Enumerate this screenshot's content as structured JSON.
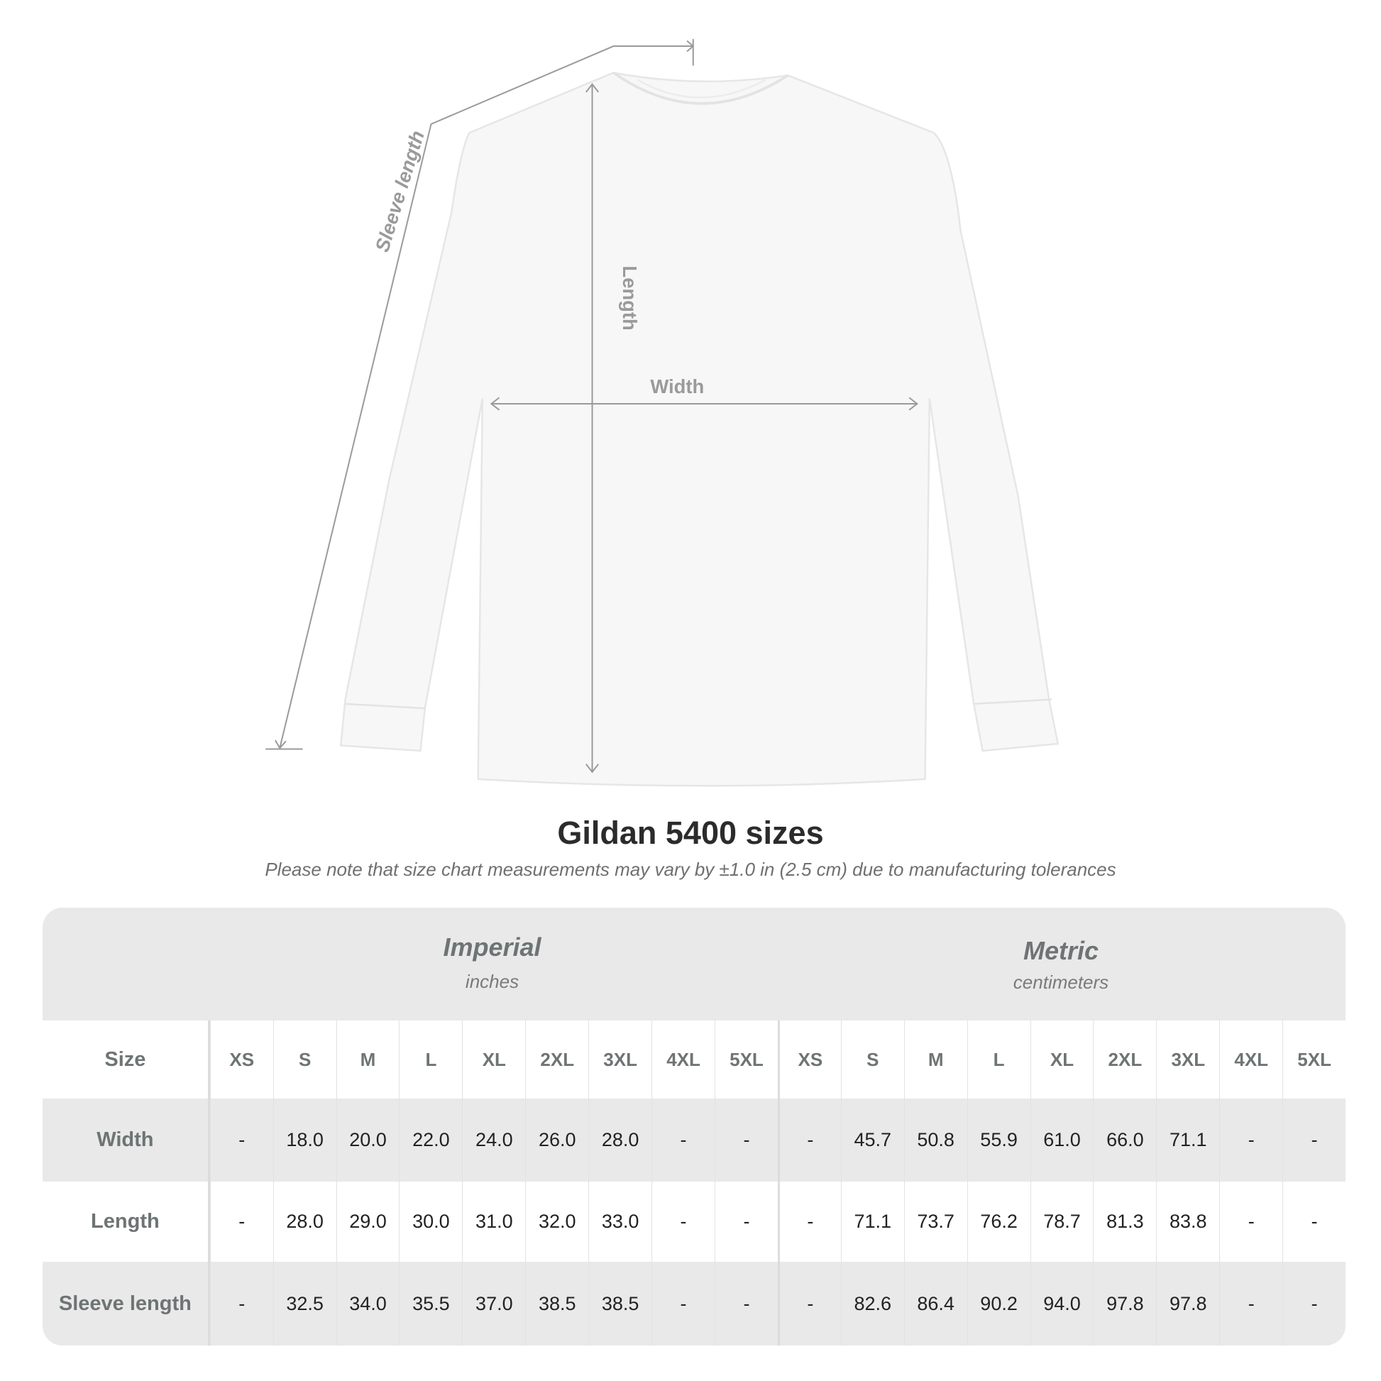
{
  "diagram": {
    "labels": {
      "sleeve": "Sleeve length",
      "length": "Length",
      "width": "Width"
    },
    "garment_color": "#f7f7f7",
    "line_color": "#9a9a9a"
  },
  "title": "Gildan 5400 sizes",
  "subtitle": "Please note that size chart measurements may vary by ±1.0 in (2.5 cm) due to manufacturing tolerances",
  "table": {
    "imperial": {
      "name": "Imperial",
      "unit": "inches"
    },
    "metric": {
      "name": "Metric",
      "unit": "centimeters"
    },
    "size_label": "Size",
    "sizes": [
      "XS",
      "S",
      "M",
      "L",
      "XL",
      "2XL",
      "3XL",
      "4XL",
      "5XL"
    ],
    "rows": [
      {
        "label": "Width",
        "imperial": [
          "-",
          "18.0",
          "20.0",
          "22.0",
          "24.0",
          "26.0",
          "28.0",
          "-",
          "-"
        ],
        "metric": [
          "-",
          "45.7",
          "50.8",
          "55.9",
          "61.0",
          "66.0",
          "71.1",
          "-",
          "-"
        ]
      },
      {
        "label": "Length",
        "imperial": [
          "-",
          "28.0",
          "29.0",
          "30.0",
          "31.0",
          "32.0",
          "33.0",
          "-",
          "-"
        ],
        "metric": [
          "-",
          "71.1",
          "73.7",
          "76.2",
          "78.7",
          "81.3",
          "83.8",
          "-",
          "-"
        ]
      },
      {
        "label": "Sleeve length",
        "imperial": [
          "-",
          "32.5",
          "34.0",
          "35.5",
          "37.0",
          "38.5",
          "38.5",
          "-",
          "-"
        ],
        "metric": [
          "-",
          "82.6",
          "86.4",
          "90.2",
          "94.0",
          "97.8",
          "97.8",
          "-",
          "-"
        ]
      }
    ]
  }
}
